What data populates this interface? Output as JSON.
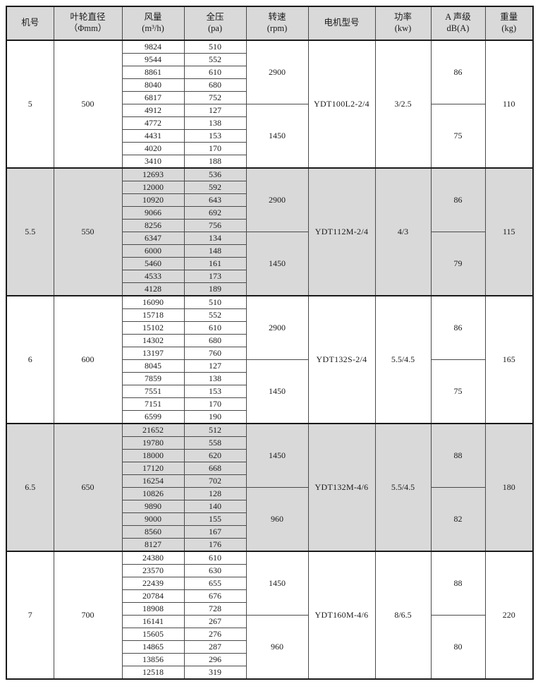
{
  "table": {
    "colors": {
      "shaded_row_bg": "#d9d9d9",
      "header_bg": "#d9d9d9",
      "grid_line": "#4a4a4a",
      "heavy_line": "#1a1a1a",
      "text": "#1a1a1a"
    },
    "headers": [
      {
        "line1": "机号",
        "line2": ""
      },
      {
        "line1": "叶轮直径",
        "line2": "（Φmm）"
      },
      {
        "line1": "风量",
        "line2": "(m³/h)"
      },
      {
        "line1": "全压",
        "line2": "(pa)"
      },
      {
        "line1": "转速",
        "line2": "(rpm)"
      },
      {
        "line1": "电机型号",
        "line2": ""
      },
      {
        "line1": "功率",
        "line2": "(kw)"
      },
      {
        "line1": "A 声级",
        "line2": "dB(A)"
      },
      {
        "line1": "重量",
        "line2": "(kg)"
      }
    ],
    "groups": [
      {
        "model_no": "5",
        "diameter": "500",
        "motor_model": "YDT100L2-2/4",
        "power": "3/2.5",
        "weight": "110",
        "shaded": false,
        "speed_blocks": [
          {
            "rpm": "2900",
            "noise_db": "86",
            "rows": [
              [
                "9824",
                "510"
              ],
              [
                "9544",
                "552"
              ],
              [
                "8861",
                "610"
              ],
              [
                "8040",
                "680"
              ],
              [
                "6817",
                "752"
              ]
            ]
          },
          {
            "rpm": "1450",
            "noise_db": "75",
            "rows": [
              [
                "4912",
                "127"
              ],
              [
                "4772",
                "138"
              ],
              [
                "4431",
                "153"
              ],
              [
                "4020",
                "170"
              ],
              [
                "3410",
                "188"
              ]
            ]
          }
        ]
      },
      {
        "model_no": "5.5",
        "diameter": "550",
        "motor_model": "YDT112M-2/4",
        "power": "4/3",
        "weight": "115",
        "shaded": true,
        "speed_blocks": [
          {
            "rpm": "2900",
            "noise_db": "86",
            "rows": [
              [
                "12693",
                "536"
              ],
              [
                "12000",
                "592"
              ],
              [
                "10920",
                "643"
              ],
              [
                "9066",
                "692"
              ],
              [
                "8256",
                "756"
              ]
            ]
          },
          {
            "rpm": "1450",
            "noise_db": "79",
            "rows": [
              [
                "6347",
                "134"
              ],
              [
                "6000",
                "148"
              ],
              [
                "5460",
                "161"
              ],
              [
                "4533",
                "173"
              ],
              [
                "4128",
                "189"
              ]
            ]
          }
        ]
      },
      {
        "model_no": "6",
        "diameter": "600",
        "motor_model": "YDT132S-2/4",
        "power": "5.5/4.5",
        "weight": "165",
        "shaded": false,
        "speed_blocks": [
          {
            "rpm": "2900",
            "noise_db": "86",
            "rows": [
              [
                "16090",
                "510"
              ],
              [
                "15718",
                "552"
              ],
              [
                "15102",
                "610"
              ],
              [
                "14302",
                "680"
              ],
              [
                "13197",
                "760"
              ]
            ]
          },
          {
            "rpm": "1450",
            "noise_db": "75",
            "rows": [
              [
                "8045",
                "127"
              ],
              [
                "7859",
                "138"
              ],
              [
                "7551",
                "153"
              ],
              [
                "7151",
                "170"
              ],
              [
                "6599",
                "190"
              ]
            ]
          }
        ]
      },
      {
        "model_no": "6.5",
        "diameter": "650",
        "motor_model": "YDT132M-4/6",
        "power": "5.5/4.5",
        "weight": "180",
        "shaded": true,
        "speed_blocks": [
          {
            "rpm": "1450",
            "noise_db": "88",
            "rows": [
              [
                "21652",
                "512"
              ],
              [
                "19780",
                "558"
              ],
              [
                "18000",
                "620"
              ],
              [
                "17120",
                "668"
              ],
              [
                "16254",
                "702"
              ]
            ]
          },
          {
            "rpm": "960",
            "noise_db": "82",
            "rows": [
              [
                "10826",
                "128"
              ],
              [
                "9890",
                "140"
              ],
              [
                "9000",
                "155"
              ],
              [
                "8560",
                "167"
              ],
              [
                "8127",
                "176"
              ]
            ]
          }
        ]
      },
      {
        "model_no": "7",
        "diameter": "700",
        "motor_model": "YDT160M-4/6",
        "power": "8/6.5",
        "weight": "220",
        "shaded": false,
        "speed_blocks": [
          {
            "rpm": "1450",
            "noise_db": "88",
            "rows": [
              [
                "24380",
                "610"
              ],
              [
                "23570",
                "630"
              ],
              [
                "22439",
                "655"
              ],
              [
                "20784",
                "676"
              ],
              [
                "18908",
                "728"
              ]
            ]
          },
          {
            "rpm": "960",
            "noise_db": "80",
            "rows": [
              [
                "16141",
                "267"
              ],
              [
                "15605",
                "276"
              ],
              [
                "14865",
                "287"
              ],
              [
                "13856",
                "296"
              ],
              [
                "12518",
                "319"
              ]
            ]
          }
        ]
      }
    ]
  }
}
